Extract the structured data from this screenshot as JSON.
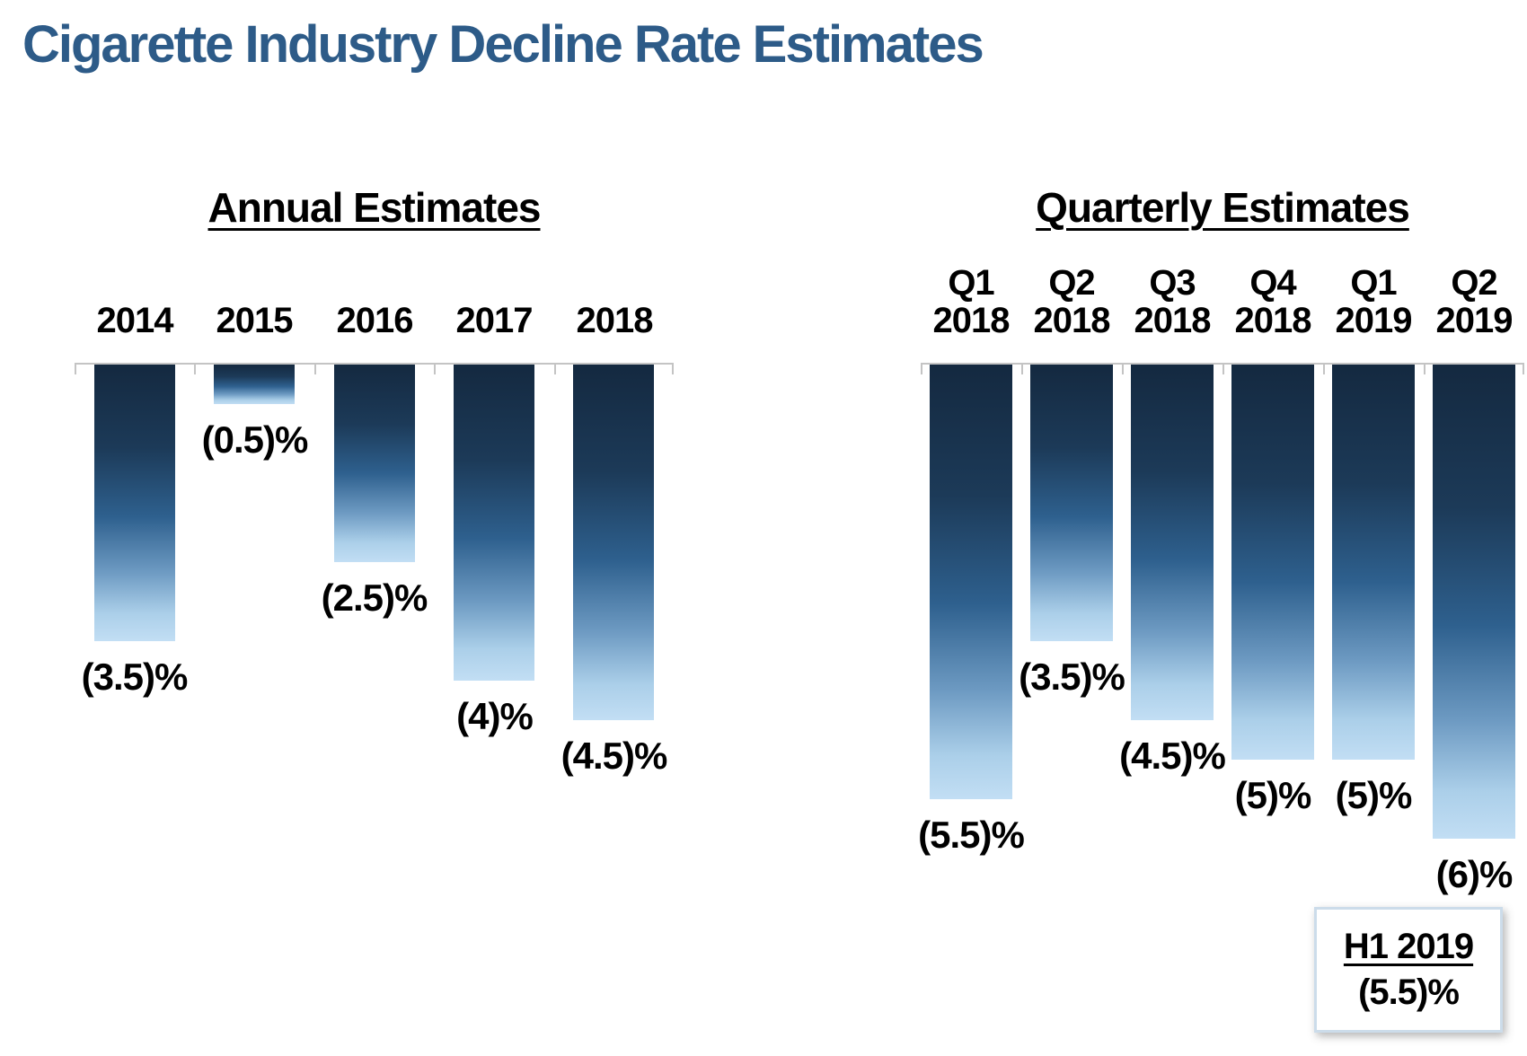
{
  "title": "Cigarette Industry Decline Rate Estimates",
  "colors": {
    "title_blue": "#2d5b88",
    "axis_gray": "#c4c4c4",
    "bar_gradient_top": "#142940",
    "bar_gradient_mid": "#2e608e",
    "bar_gradient_bottom": "#c2def4",
    "label_black": "#000000",
    "callout_border": "#ccdcea"
  },
  "chart_data": [
    {
      "type": "bar",
      "title": "Annual Estimates",
      "categories": [
        "2014",
        "2015",
        "2016",
        "2017",
        "2018"
      ],
      "values": [
        -3.5,
        -0.5,
        -2.5,
        -4,
        -4.5
      ],
      "value_labels": [
        "(3.5)%",
        "(0.5)%",
        "(2.5)%",
        "(4)%",
        "(4.5)%"
      ],
      "unit": "percent",
      "xlabel": "",
      "ylabel": "",
      "ylim": [
        -6.5,
        0
      ],
      "grid": false,
      "legend": "none",
      "bar_direction": "down-from-zero-axis"
    },
    {
      "type": "bar",
      "title": "Quarterly Estimates",
      "categories": [
        "Q1 2018",
        "Q2 2018",
        "Q3 2018",
        "Q4 2018",
        "Q1 2019",
        "Q2 2019"
      ],
      "values": [
        -5.5,
        -3.5,
        -4.5,
        -5,
        -5,
        -6
      ],
      "value_labels": [
        "(5.5)%",
        "(3.5)%",
        "(4.5)%",
        "(5)%",
        "(5)%",
        "(6)%"
      ],
      "unit": "percent",
      "xlabel": "",
      "ylabel": "",
      "ylim": [
        -6.5,
        0
      ],
      "grid": false,
      "legend": "none",
      "bar_direction": "down-from-zero-axis"
    }
  ],
  "annotation_box": {
    "title": "H1 2019",
    "value": "(5.5)%"
  }
}
